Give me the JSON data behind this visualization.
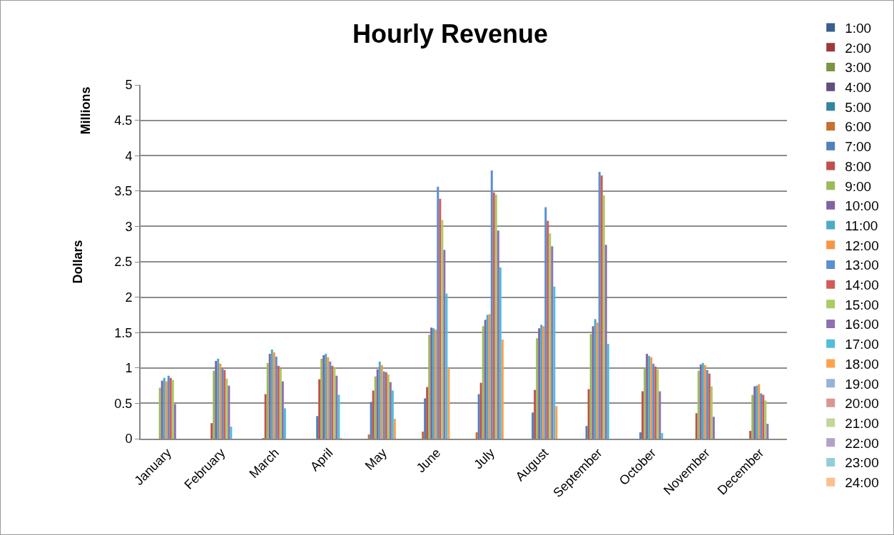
{
  "chart_data": {
    "type": "bar",
    "title": "Hourly Revenue",
    "ylabel": "Dollars",
    "annotations": [
      "Millions"
    ],
    "categories": [
      "January",
      "February",
      "March",
      "April",
      "May",
      "June",
      "July",
      "August",
      "September",
      "October",
      "November",
      "December"
    ],
    "series": [
      {
        "name": "1:00",
        "color": "#3a5f8f",
        "values": [
          0,
          0,
          0,
          0,
          0,
          0,
          0,
          0,
          0,
          0,
          0,
          0
        ]
      },
      {
        "name": "2:00",
        "color": "#9b3b38",
        "values": [
          0,
          0,
          0,
          0,
          0,
          0,
          0,
          0,
          0,
          0,
          0,
          0
        ]
      },
      {
        "name": "3:00",
        "color": "#7a9440",
        "values": [
          0,
          0,
          0,
          0,
          0,
          0,
          0,
          0,
          0,
          0,
          0,
          0
        ]
      },
      {
        "name": "4:00",
        "color": "#634c80",
        "values": [
          0,
          0,
          0,
          0,
          0,
          0,
          0,
          0,
          0,
          0,
          0,
          0
        ]
      },
      {
        "name": "5:00",
        "color": "#35869c",
        "values": [
          0,
          0,
          0,
          0,
          0,
          0,
          0,
          0,
          0,
          0,
          0,
          0
        ]
      },
      {
        "name": "6:00",
        "color": "#c8702e",
        "values": [
          0,
          0,
          0,
          0,
          0.06,
          0.1,
          0.09,
          0,
          0,
          0,
          0,
          0
        ]
      },
      {
        "name": "7:00",
        "color": "#4f81bd",
        "values": [
          0,
          0,
          0.01,
          0.32,
          0.52,
          0.57,
          0.63,
          0.37,
          0.18,
          0.09,
          0,
          0
        ]
      },
      {
        "name": "8:00",
        "color": "#c0504d",
        "values": [
          0,
          0.22,
          0.63,
          0.84,
          0.68,
          0.73,
          0.79,
          0.69,
          0.7,
          0.67,
          0.36,
          0.11
        ]
      },
      {
        "name": "9:00",
        "color": "#9bbb59",
        "values": [
          0.72,
          0.96,
          1.07,
          1.13,
          0.88,
          1.47,
          1.59,
          1.42,
          1.48,
          1.0,
          0.96,
          0.62
        ]
      },
      {
        "name": "10:00",
        "color": "#8064a2",
        "values": [
          0.82,
          1.1,
          1.2,
          1.18,
          0.98,
          1.57,
          1.68,
          1.56,
          1.59,
          1.2,
          1.05,
          0.74
        ]
      },
      {
        "name": "11:00",
        "color": "#4bacc6",
        "values": [
          0.86,
          1.13,
          1.26,
          1.2,
          1.09,
          1.56,
          1.75,
          1.61,
          1.69,
          1.17,
          1.07,
          0.75
        ]
      },
      {
        "name": "12:00",
        "color": "#f79646",
        "values": [
          0.81,
          1.06,
          1.22,
          1.15,
          1.04,
          1.54,
          1.76,
          1.59,
          1.64,
          1.15,
          1.04,
          0.77
        ]
      },
      {
        "name": "13:00",
        "color": "#5b8fd0",
        "values": [
          0.89,
          0.99,
          1.16,
          1.09,
          0.95,
          3.56,
          3.79,
          3.27,
          3.77,
          1.06,
          0.97,
          0.64
        ]
      },
      {
        "name": "14:00",
        "color": "#d35b57",
        "values": [
          0.86,
          0.97,
          1.03,
          1.03,
          0.94,
          3.39,
          3.48,
          3.08,
          3.72,
          1.02,
          0.92,
          0.62
        ]
      },
      {
        "name": "15:00",
        "color": "#abcb63",
        "values": [
          0.83,
          0.85,
          0.99,
          1.0,
          0.91,
          3.09,
          3.45,
          2.9,
          3.44,
          0.98,
          0.74,
          0.54
        ]
      },
      {
        "name": "16:00",
        "color": "#8e70b3",
        "values": [
          0.49,
          0.75,
          0.81,
          0.89,
          0.8,
          2.67,
          2.94,
          2.72,
          2.74,
          0.67,
          0.31,
          0.21
        ]
      },
      {
        "name": "17:00",
        "color": "#52bdda",
        "values": [
          0,
          0.17,
          0.43,
          0.62,
          0.68,
          2.05,
          2.42,
          2.15,
          1.34,
          0.08,
          0,
          0
        ]
      },
      {
        "name": "18:00",
        "color": "#ffa14e",
        "values": [
          0,
          0,
          0,
          0.01,
          0.28,
          1.0,
          1.4,
          0.46,
          0,
          0,
          0,
          0
        ]
      },
      {
        "name": "19:00",
        "color": "#95b3d7",
        "values": [
          0,
          0,
          0,
          0,
          0,
          0,
          0,
          0,
          0,
          0,
          0,
          0
        ]
      },
      {
        "name": "20:00",
        "color": "#d99694",
        "values": [
          0,
          0,
          0,
          0,
          0,
          0,
          0,
          0,
          0,
          0,
          0,
          0
        ]
      },
      {
        "name": "21:00",
        "color": "#c3d69b",
        "values": [
          0,
          0,
          0,
          0,
          0,
          0,
          0,
          0,
          0,
          0,
          0,
          0
        ]
      },
      {
        "name": "22:00",
        "color": "#b3a2c7",
        "values": [
          0,
          0,
          0,
          0,
          0,
          0,
          0,
          0,
          0,
          0,
          0,
          0
        ]
      },
      {
        "name": "23:00",
        "color": "#93cddd",
        "values": [
          0,
          0,
          0,
          0,
          0,
          0,
          0,
          0,
          0,
          0,
          0,
          0
        ]
      },
      {
        "name": "24:00",
        "color": "#fac090",
        "values": [
          0,
          0,
          0,
          0,
          0,
          0,
          0,
          0,
          0,
          0,
          0,
          0
        ]
      }
    ],
    "ylim": [
      0,
      5
    ],
    "yticks": [
      0,
      0.5,
      1,
      1.5,
      2,
      2.5,
      3,
      3.5,
      4,
      4.5,
      5
    ],
    "grid": "y",
    "legend": "right"
  }
}
